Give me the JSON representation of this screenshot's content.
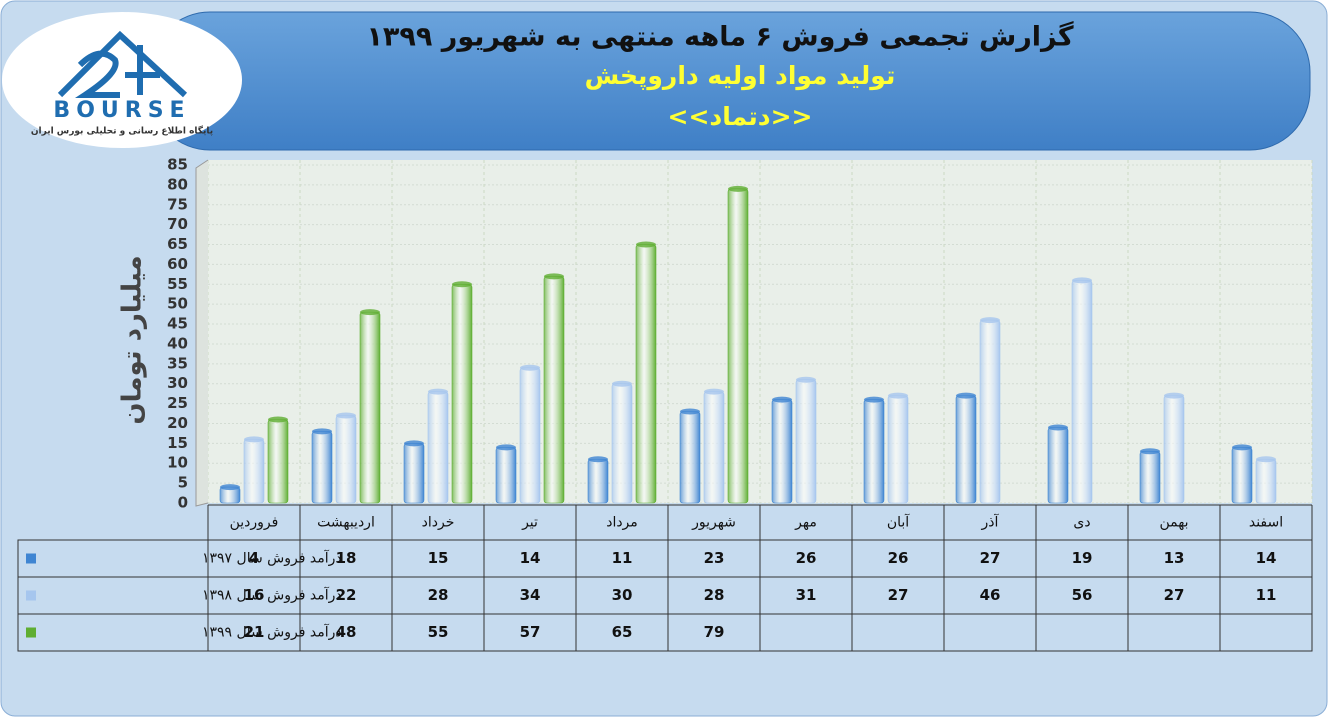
{
  "logo": {
    "name": "BOURSE",
    "tagline": "پایگاه اطلاع رسانی و تحلیلی بورس ایران"
  },
  "chart_data": {
    "type": "bar",
    "title": "گزارش تجمعی فروش ۶ ماهه منتهی به شهریور ۱۳۹۹",
    "subtitle": "تولید مواد اولیه داروپخش",
    "symbol": "<<دتماد>>",
    "y_label": "میلیارد تومان",
    "categories": [
      "فروردین",
      "اردیبهشت",
      "خرداد",
      "تیر",
      "مرداد",
      "شهریور",
      "مهر",
      "آبان",
      "آذر",
      "دی",
      "بهمن",
      "اسفند"
    ],
    "series": [
      {
        "name": "درآمد فروش سال ۱۳۹۷",
        "color": "#3f85d2",
        "values": [
          4,
          18,
          15,
          14,
          11,
          23,
          26,
          26,
          27,
          19,
          13,
          14
        ]
      },
      {
        "name": "درآمد فروش سال ۱۳۹۸",
        "color": "#a6c6ee",
        "values": [
          16,
          22,
          28,
          34,
          30,
          28,
          31,
          27,
          46,
          56,
          27,
          11
        ]
      },
      {
        "name": "درآمد فروش سال ۱۳۹۹",
        "color": "#5fae32",
        "values": [
          21,
          48,
          55,
          57,
          65,
          79,
          null,
          null,
          null,
          null,
          null,
          null
        ]
      }
    ],
    "ylim": [
      0,
      85
    ],
    "yticks": [
      0,
      5,
      10,
      15,
      20,
      25,
      30,
      35,
      40,
      45,
      50,
      55,
      60,
      65,
      70,
      75,
      80,
      85
    ],
    "grid": true
  }
}
